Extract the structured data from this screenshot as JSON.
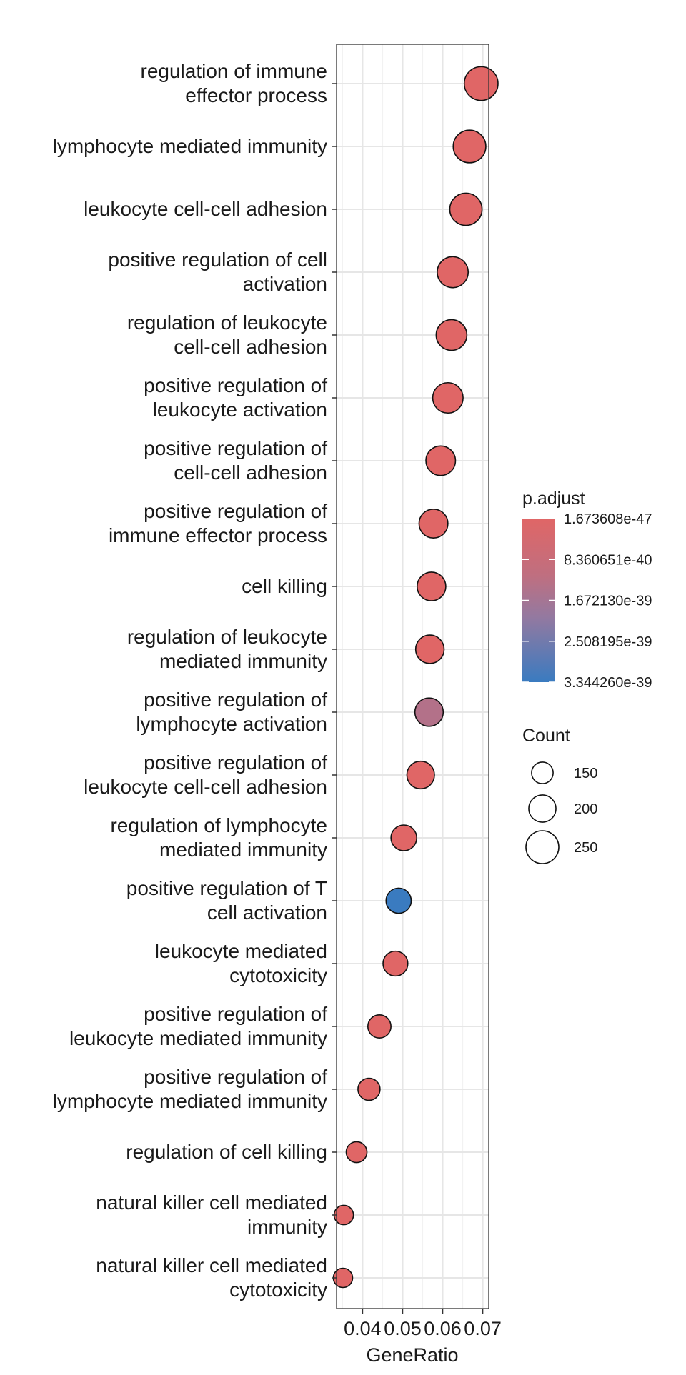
{
  "chart_data": {
    "type": "scatter",
    "xlabel": "GeneRatio",
    "x_ticks": [
      "0.04",
      "0.05",
      "0.06",
      "0.07"
    ],
    "x_tick_values": [
      0.04,
      0.05,
      0.06,
      0.07
    ],
    "xlim": [
      0.0335,
      0.0715
    ],
    "grid": true,
    "legend_position": "right",
    "color_legend": {
      "title": "p.adjust",
      "labels": [
        "1.673608e-47",
        "8.360651e-40",
        "1.672130e-39",
        "2.508195e-39",
        "3.344260e-39"
      ],
      "colors": [
        "#e06666",
        "#9479a0",
        "#3a7bc0"
      ]
    },
    "size_legend": {
      "title": "Count",
      "labels": [
        "150",
        "200",
        "250"
      ],
      "values": [
        150,
        200,
        250
      ]
    },
    "terms": [
      {
        "label": [
          "regulation of immune",
          "effector process"
        ],
        "x": 0.0696,
        "count": 258,
        "p_adjust": 1.7e-47
      },
      {
        "label": [
          "lymphocyte mediated immunity"
        ],
        "x": 0.0667,
        "count": 248,
        "p_adjust": 1.7e-47
      },
      {
        "label": [
          "leukocyte cell-cell adhesion"
        ],
        "x": 0.0658,
        "count": 245,
        "p_adjust": 1.7e-47
      },
      {
        "label": [
          "positive regulation of cell",
          "activation"
        ],
        "x": 0.0625,
        "count": 233,
        "p_adjust": 1.7e-47
      },
      {
        "label": [
          "regulation of leukocyte",
          "cell-cell adhesion"
        ],
        "x": 0.0622,
        "count": 231,
        "p_adjust": 1.7e-47
      },
      {
        "label": [
          "positive regulation of",
          "leukocyte activation"
        ],
        "x": 0.0613,
        "count": 228,
        "p_adjust": 1.7e-47
      },
      {
        "label": [
          "positive regulation of",
          "cell-cell adhesion"
        ],
        "x": 0.0595,
        "count": 221,
        "p_adjust": 1.7e-47
      },
      {
        "label": [
          "positive regulation of",
          "immune effector process"
        ],
        "x": 0.0577,
        "count": 215,
        "p_adjust": 1.7e-47
      },
      {
        "label": [
          "cell killing"
        ],
        "x": 0.0572,
        "count": 213,
        "p_adjust": 1.7e-47
      },
      {
        "label": [
          "regulation of leukocyte",
          "mediated immunity"
        ],
        "x": 0.0568,
        "count": 211,
        "p_adjust": 1.7e-47
      },
      {
        "label": [
          "positive regulation of",
          "lymphocyte activation"
        ],
        "x": 0.0566,
        "count": 210,
        "p_adjust": 1e-39
      },
      {
        "label": [
          "positive regulation of",
          "leukocyte cell-cell adhesion"
        ],
        "x": 0.0545,
        "count": 203,
        "p_adjust": 1.7e-47
      },
      {
        "label": [
          "regulation of lymphocyte",
          "mediated immunity"
        ],
        "x": 0.0503,
        "count": 187,
        "p_adjust": 1.7e-47
      },
      {
        "label": [
          "positive regulation of T",
          "cell activation"
        ],
        "x": 0.049,
        "count": 182,
        "p_adjust": 3.34426e-39
      },
      {
        "label": [
          "leukocyte mediated",
          "cytotoxicity"
        ],
        "x": 0.0482,
        "count": 179,
        "p_adjust": 1.7e-47
      },
      {
        "label": [
          "positive regulation of",
          "leukocyte mediated immunity"
        ],
        "x": 0.0442,
        "count": 164,
        "p_adjust": 1.7e-47
      },
      {
        "label": [
          "positive regulation of",
          "lymphocyte mediated immunity"
        ],
        "x": 0.0416,
        "count": 155,
        "p_adjust": 1.7e-47
      },
      {
        "label": [
          "regulation of cell killing"
        ],
        "x": 0.0385,
        "count": 143,
        "p_adjust": 1.7e-47
      },
      {
        "label": [
          "natural killer cell mediated",
          "immunity"
        ],
        "x": 0.0353,
        "count": 131,
        "p_adjust": 1.7e-47
      },
      {
        "label": [
          "natural killer cell mediated",
          "cytotoxicity"
        ],
        "x": 0.0351,
        "count": 130,
        "p_adjust": 1.7e-47
      }
    ]
  }
}
